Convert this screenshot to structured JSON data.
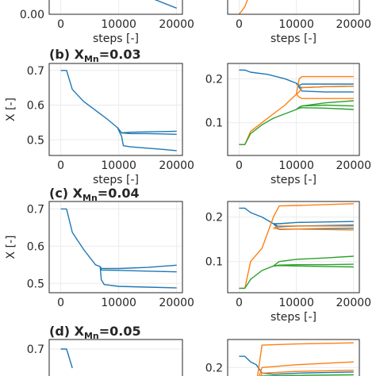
{
  "colors": {
    "blue": "#1f77b4",
    "orange": "#ff7f0e",
    "green": "#2ca02c"
  },
  "chart_data": [
    {
      "type": "line",
      "panel": "a-left",
      "title": "",
      "xlabel": "steps [-]",
      "ylabel": "",
      "xlim": [
        -2000,
        21000
      ],
      "ylim": [
        0.0,
        0.05
      ],
      "xticks": [
        0,
        10000,
        20000
      ],
      "xticklabels": [
        "0",
        "10000",
        "20000"
      ],
      "yticks": [
        0.0
      ],
      "yticklabels": [
        "0.00"
      ],
      "grid": true,
      "series": [
        {
          "color": "blue",
          "x": [
            13000,
            16000,
            20000
          ],
          "y": [
            0.032,
            0.02,
            0.008
          ]
        }
      ]
    },
    {
      "type": "line",
      "panel": "a-right",
      "title": "",
      "xlabel": "steps [-]",
      "ylabel": "",
      "xlim": [
        -2000,
        21000
      ],
      "ylim": [
        0.0,
        0.05
      ],
      "xticks": [
        0,
        10000,
        20000
      ],
      "xticklabels": [
        "0",
        "10000",
        "20000"
      ],
      "yticks": [],
      "yticklabels": [],
      "grid": true,
      "series": [
        {
          "color": "orange",
          "x": [
            0,
            1000,
            3000
          ],
          "y": [
            0.0,
            0.01,
            0.05
          ]
        }
      ]
    },
    {
      "type": "line",
      "panel": "b-left",
      "title_prefix": "(b) X",
      "title_sub": "Mn",
      "title_suffix": "=0.03",
      "xlabel": "steps [-]",
      "ylabel": "X [-]",
      "xlim": [
        -2000,
        21000
      ],
      "ylim": [
        0.455,
        0.72
      ],
      "xticks": [
        0,
        10000,
        20000
      ],
      "xticklabels": [
        "0",
        "10000",
        "20000"
      ],
      "yticks": [
        0.5,
        0.6,
        0.7
      ],
      "yticklabels": [
        "0.5",
        "0.6",
        "0.7"
      ],
      "grid": true,
      "series": [
        {
          "color": "blue",
          "x": [
            0,
            1000,
            2000,
            4000,
            6000,
            8000,
            9800,
            10500,
            12000,
            15000,
            18000,
            20000
          ],
          "y": [
            0.7,
            0.7,
            0.645,
            0.61,
            0.585,
            0.56,
            0.535,
            0.52,
            0.522,
            0.523,
            0.524,
            0.525
          ]
        },
        {
          "color": "blue",
          "x": [
            9800,
            10500,
            12000,
            15000,
            18000,
            20000
          ],
          "y": [
            0.535,
            0.52,
            0.518,
            0.518,
            0.517,
            0.516
          ]
        },
        {
          "color": "blue",
          "x": [
            9800,
            10500,
            10800,
            12000,
            15000,
            18000,
            20000
          ],
          "y": [
            0.535,
            0.51,
            0.483,
            0.48,
            0.476,
            0.472,
            0.469
          ]
        }
      ]
    },
    {
      "type": "line",
      "panel": "b-right",
      "title": "",
      "xlabel": "steps [-]",
      "ylabel": "",
      "xlim": [
        -2000,
        21000
      ],
      "ylim": [
        0.025,
        0.235
      ],
      "xticks": [
        0,
        10000,
        20000
      ],
      "xticklabels": [
        "0",
        "10000",
        "20000"
      ],
      "yticks": [
        0.1,
        0.2
      ],
      "yticklabels": [
        "0.1",
        "0.2"
      ],
      "grid": true,
      "series": [
        {
          "color": "blue",
          "x": [
            0,
            1000,
            2000,
            5000,
            8000,
            10000,
            10500,
            11000,
            15000,
            20000
          ],
          "y": [
            0.22,
            0.22,
            0.215,
            0.21,
            0.2,
            0.19,
            0.185,
            0.188,
            0.188,
            0.188
          ]
        },
        {
          "color": "blue",
          "x": [
            10000,
            10500,
            11000,
            15000,
            20000
          ],
          "y": [
            0.19,
            0.182,
            0.18,
            0.182,
            0.183
          ]
        },
        {
          "color": "blue",
          "x": [
            10000,
            10500,
            11000,
            15000,
            20000
          ],
          "y": [
            0.19,
            0.18,
            0.172,
            0.17,
            0.17
          ]
        },
        {
          "color": "orange",
          "x": [
            0,
            1000,
            2000,
            4000,
            6000,
            8000,
            10000,
            10500,
            11000,
            15000,
            20000
          ],
          "y": [
            0.05,
            0.05,
            0.08,
            0.1,
            0.12,
            0.14,
            0.165,
            0.2,
            0.205,
            0.205,
            0.205
          ]
        },
        {
          "color": "orange",
          "x": [
            10000,
            10500,
            11000,
            15000,
            20000
          ],
          "y": [
            0.165,
            0.17,
            0.18,
            0.182,
            0.183
          ]
        },
        {
          "color": "orange",
          "x": [
            10000,
            10500,
            11000,
            15000,
            20000
          ],
          "y": [
            0.165,
            0.158,
            0.155,
            0.155,
            0.155
          ]
        },
        {
          "color": "green",
          "x": [
            0,
            1000,
            2000,
            4000,
            6000,
            8000,
            10000,
            10500,
            11000,
            15000,
            20000
          ],
          "y": [
            0.05,
            0.05,
            0.075,
            0.095,
            0.11,
            0.12,
            0.13,
            0.135,
            0.138,
            0.145,
            0.15
          ]
        },
        {
          "color": "green",
          "x": [
            10000,
            10500,
            11000,
            15000,
            20000
          ],
          "y": [
            0.13,
            0.135,
            0.138,
            0.14,
            0.138
          ]
        },
        {
          "color": "green",
          "x": [
            10000,
            10500,
            11000,
            15000,
            20000
          ],
          "y": [
            0.13,
            0.133,
            0.134,
            0.133,
            0.13
          ]
        }
      ]
    },
    {
      "type": "line",
      "panel": "c-left",
      "title_prefix": "(c) X",
      "title_sub": "Mn",
      "title_suffix": "=0.04",
      "xlabel": "",
      "ylabel": "X [-]",
      "xlim": [
        -2000,
        21000
      ],
      "ylim": [
        0.475,
        0.72
      ],
      "xticks": [
        0,
        10000,
        20000
      ],
      "xticklabels": [
        "0",
        "10000",
        "20000"
      ],
      "yticks": [
        0.5,
        0.6,
        0.7
      ],
      "yticklabels": [
        "0.5",
        "0.6",
        "0.7"
      ],
      "grid": true,
      "series": [
        {
          "color": "blue",
          "x": [
            0,
            1000,
            2000,
            4000,
            6000,
            6800,
            7000,
            10000,
            15000,
            20000
          ],
          "y": [
            0.7,
            0.7,
            0.637,
            0.59,
            0.55,
            0.545,
            0.54,
            0.54,
            0.543,
            0.549
          ]
        },
        {
          "color": "blue",
          "x": [
            6800,
            7000,
            10000,
            15000,
            20000
          ],
          "y": [
            0.545,
            0.536,
            0.535,
            0.533,
            0.531
          ]
        },
        {
          "color": "blue",
          "x": [
            6800,
            7000,
            7500,
            10000,
            15000,
            20000
          ],
          "y": [
            0.545,
            0.51,
            0.497,
            0.492,
            0.49,
            0.488
          ]
        }
      ]
    },
    {
      "type": "line",
      "panel": "c-right",
      "title": "",
      "xlabel": "steps [-]",
      "ylabel": "",
      "xlim": [
        -2000,
        21000
      ],
      "ylim": [
        0.03,
        0.235
      ],
      "xticks": [
        0,
        10000,
        20000
      ],
      "xticklabels": [
        "0",
        "10000",
        "20000"
      ],
      "yticks": [
        0.1,
        0.2
      ],
      "yticklabels": [
        "0.1",
        "0.2"
      ],
      "grid": true,
      "series": [
        {
          "color": "blue",
          "x": [
            0,
            1000,
            2000,
            4000,
            6000,
            7000,
            10000,
            15000,
            20000
          ],
          "y": [
            0.22,
            0.22,
            0.21,
            0.2,
            0.185,
            0.185,
            0.188,
            0.189,
            0.19
          ]
        },
        {
          "color": "blue",
          "x": [
            6000,
            7000,
            10000,
            15000,
            20000
          ],
          "y": [
            0.185,
            0.178,
            0.18,
            0.181,
            0.182
          ]
        },
        {
          "color": "blue",
          "x": [
            6000,
            7000,
            10000,
            15000,
            20000
          ],
          "y": [
            0.185,
            0.172,
            0.173,
            0.174,
            0.175
          ]
        },
        {
          "color": "orange",
          "x": [
            0,
            1000,
            2000,
            4000,
            6000,
            7000,
            10000,
            15000,
            20000
          ],
          "y": [
            0.04,
            0.04,
            0.1,
            0.13,
            0.2,
            0.225,
            0.226,
            0.228,
            0.23
          ]
        },
        {
          "color": "orange",
          "x": [
            6000,
            7000,
            10000,
            15000,
            20000
          ],
          "y": [
            0.175,
            0.18,
            0.18,
            0.18,
            0.18
          ]
        },
        {
          "color": "orange",
          "x": [
            6000,
            7000,
            10000,
            15000,
            20000
          ],
          "y": [
            0.175,
            0.173,
            0.173,
            0.172,
            0.171
          ]
        },
        {
          "color": "green",
          "x": [
            0,
            1000,
            2000,
            4000,
            6000,
            7000,
            10000,
            15000,
            20000
          ],
          "y": [
            0.04,
            0.04,
            0.06,
            0.08,
            0.09,
            0.1,
            0.105,
            0.108,
            0.112
          ]
        },
        {
          "color": "green",
          "x": [
            6000,
            7000,
            10000,
            15000,
            20000
          ],
          "y": [
            0.09,
            0.092,
            0.093,
            0.093,
            0.094
          ]
        },
        {
          "color": "green",
          "x": [
            6000,
            7000,
            10000,
            15000,
            20000
          ],
          "y": [
            0.09,
            0.091,
            0.09,
            0.089,
            0.088
          ]
        }
      ]
    },
    {
      "type": "line",
      "panel": "d-left",
      "title_prefix": "(d) X",
      "title_sub": "Mn",
      "title_suffix": "=0.05",
      "xlabel": "",
      "ylabel": "",
      "xlim": [
        -2000,
        21000
      ],
      "ylim": [
        0.62,
        0.72
      ],
      "xticks": [],
      "xticklabels": [],
      "yticks": [
        0.7
      ],
      "yticklabels": [
        "0.7"
      ],
      "grid": true,
      "series": [
        {
          "color": "blue",
          "x": [
            0,
            1000,
            2000
          ],
          "y": [
            0.7,
            0.7,
            0.66
          ]
        }
      ]
    },
    {
      "type": "line",
      "panel": "d-right",
      "title": "",
      "xlabel": "",
      "ylabel": "",
      "xlim": [
        -2000,
        21000
      ],
      "ylim": [
        0.165,
        0.25
      ],
      "xticks": [],
      "xticklabels": [],
      "yticks": [
        0.2
      ],
      "yticklabels": [
        "0.2"
      ],
      "grid": true,
      "series": [
        {
          "color": "blue",
          "x": [
            0,
            1000,
            2000,
            3000,
            4000,
            6000,
            10000,
            20000
          ],
          "y": [
            0.22,
            0.22,
            0.21,
            0.205,
            0.19,
            0.188,
            0.19,
            0.192
          ]
        },
        {
          "color": "orange",
          "x": [
            3000,
            4000,
            10000,
            20000
          ],
          "y": [
            0.17,
            0.24,
            0.242,
            0.244
          ]
        },
        {
          "color": "orange",
          "x": [
            3000,
            4000,
            10000,
            20000
          ],
          "y": [
            0.17,
            0.2,
            0.205,
            0.21
          ]
        },
        {
          "color": "orange",
          "x": [
            3000,
            4000,
            10000,
            20000
          ],
          "y": [
            0.17,
            0.19,
            0.193,
            0.195
          ]
        },
        {
          "color": "green",
          "x": [
            3000,
            4000,
            10000,
            20000
          ],
          "y": [
            0.17,
            0.185,
            0.186,
            0.187
          ]
        }
      ]
    }
  ]
}
